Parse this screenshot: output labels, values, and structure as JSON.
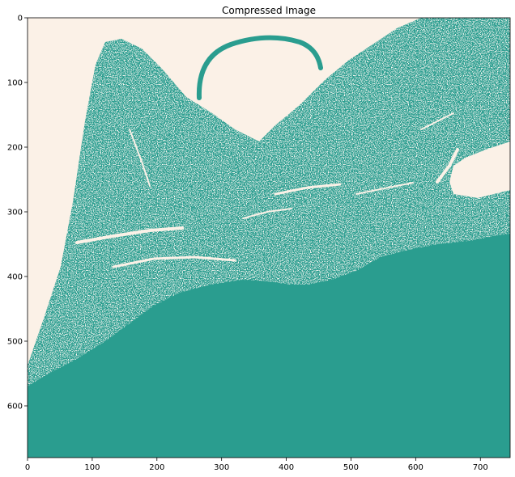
{
  "figure": {
    "title": "Compressed Image",
    "x_ticks": [
      0,
      100,
      200,
      300,
      400,
      500,
      600,
      700
    ],
    "y_ticks": [
      0,
      100,
      200,
      300,
      400,
      500,
      600
    ],
    "x_range": [
      0,
      746
    ],
    "y_range": [
      0,
      680
    ],
    "colors": {
      "background": "#fbf1e7",
      "foreground": "#2a9d8f"
    }
  }
}
